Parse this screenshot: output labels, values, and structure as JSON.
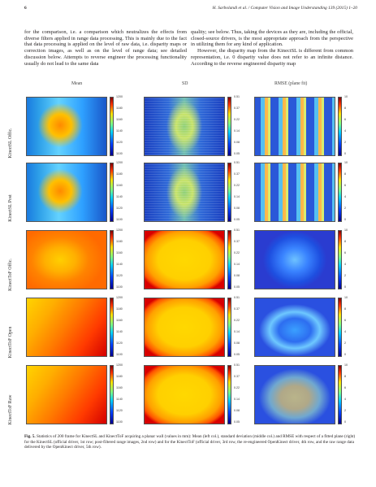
{
  "header": {
    "page_number": "6",
    "running_title": "H. Sarbolandi et al. / Computer Vision and Image Understanding 139 (2015) 1–20"
  },
  "body_text": {
    "left_column": "for the comparison, i.e. a comparison which neutralizes the effects from diverse filters applied in range data processing. This is mainly due to the fact that data processing is applied on the level of raw data, i.e. disparity maps or correction images, as well as on the level of range data; see detailed discussion below. Attempts to reverse engineer the processing functionality usually do not lead to the same data",
    "right_column_p1": "quality; see below. Thus, taking the devices as they are, including the official, closed-source drivers, is the most appropriate approach from the perspective in utilizing them for any kind of application.",
    "right_column_p2": "However, the disparity map from the KinectSL is different from common representation, i.e. 0 disparity value does not refer to an infinite distance. According to the reverse engineered disparity map"
  },
  "figure": {
    "column_headers": [
      "Mean",
      "SD",
      "RMSE (plane fit)"
    ],
    "rows": [
      {
        "label": "KinectSL Offic."
      },
      {
        "label": "KinectSL Post"
      },
      {
        "label": "KinectToF Offic."
      },
      {
        "label": "KinectToF Open"
      },
      {
        "label": "KinectToF Raw"
      }
    ],
    "colorbar_ticks": {
      "mean": [
        "1200",
        "1180",
        "1160",
        "1140",
        "1120",
        "1100"
      ],
      "sd": [
        "0.51",
        "0.37",
        "0.22",
        "0.14",
        "0.08",
        "0.05"
      ],
      "rmse": [
        "10",
        "8",
        "6",
        "4",
        "2",
        "0"
      ]
    },
    "caption_label": "Fig. 5.",
    "caption_text": "Statistics of 200 frame for KinectSL and KinectToF acquiring a planar wall (values in mm): Mean (left col.), standard deviation (middle col.) and RMSE with respect of a fitted plane (right) for the KinectSL (official driver, 1st row; post-filtered range images, 2nd row) and for the KinectToF (official driver, 3rd row, the re-engineered OpenKinect driver, 4th row, and the raw range data delivered by the OpenKinect driver, 5th row)."
  }
}
